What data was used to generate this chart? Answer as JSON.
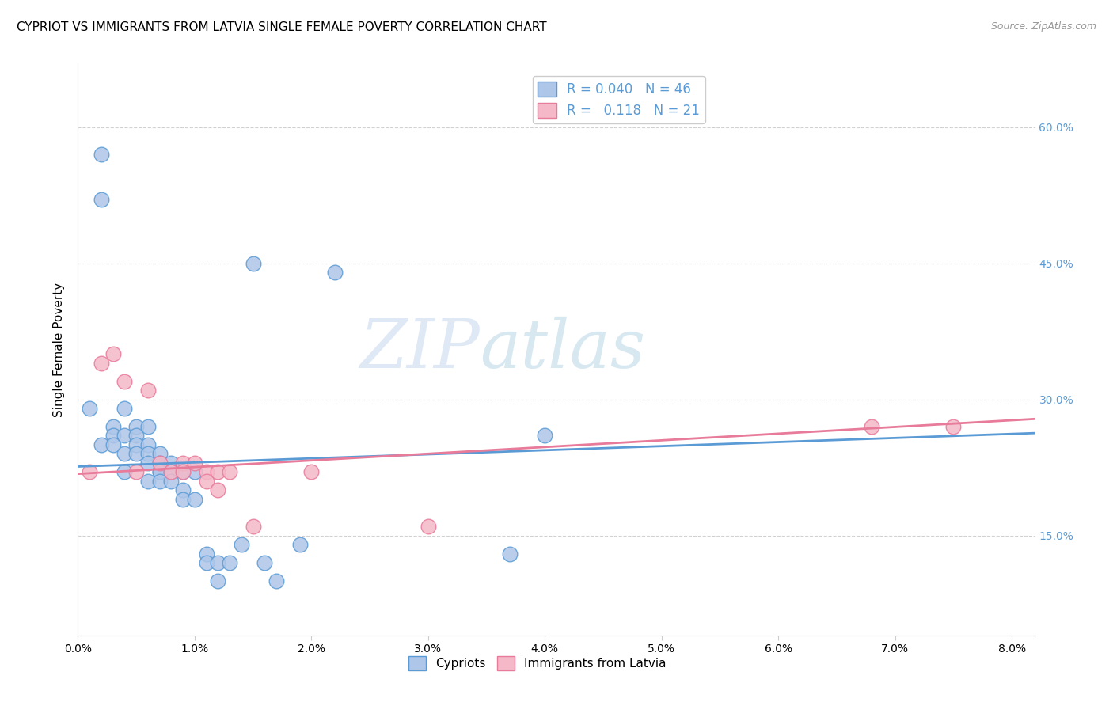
{
  "title": "CYPRIOT VS IMMIGRANTS FROM LATVIA SINGLE FEMALE POVERTY CORRELATION CHART",
  "source": "Source: ZipAtlas.com",
  "ylabel_label": "Single Female Poverty",
  "xlim": [
    0.0,
    0.082
  ],
  "ylim": [
    0.04,
    0.67
  ],
  "xticks": [
    0.0,
    0.01,
    0.02,
    0.03,
    0.04,
    0.05,
    0.06,
    0.07,
    0.08
  ],
  "xticklabels": [
    "0.0%",
    "1.0%",
    "2.0%",
    "3.0%",
    "4.0%",
    "5.0%",
    "6.0%",
    "7.0%",
    "8.0%"
  ],
  "yticks": [
    0.15,
    0.3,
    0.45,
    0.6
  ],
  "yticklabels": [
    "15.0%",
    "30.0%",
    "45.0%",
    "60.0%"
  ],
  "watermark1": "ZIP",
  "watermark2": "atlas",
  "blue_color": "#aec6e8",
  "blue_edge": "#5b9bd5",
  "pink_color": "#f4b8c8",
  "pink_edge": "#e87a9a",
  "blue_line": "#5b9bd5",
  "pink_line": "#e87a9a",
  "grid_color": "#cccccc",
  "cypriot_x": [
    0.001,
    0.002,
    0.002,
    0.002,
    0.003,
    0.003,
    0.003,
    0.004,
    0.004,
    0.004,
    0.004,
    0.005,
    0.005,
    0.005,
    0.005,
    0.006,
    0.006,
    0.006,
    0.006,
    0.006,
    0.007,
    0.007,
    0.007,
    0.007,
    0.007,
    0.008,
    0.008,
    0.008,
    0.009,
    0.009,
    0.009,
    0.01,
    0.01,
    0.011,
    0.011,
    0.012,
    0.012,
    0.013,
    0.014,
    0.015,
    0.016,
    0.017,
    0.019,
    0.022,
    0.037,
    0.04
  ],
  "cypriot_y": [
    0.29,
    0.57,
    0.52,
    0.25,
    0.27,
    0.26,
    0.25,
    0.29,
    0.26,
    0.24,
    0.22,
    0.27,
    0.26,
    0.25,
    0.24,
    0.27,
    0.25,
    0.24,
    0.23,
    0.21,
    0.24,
    0.23,
    0.22,
    0.22,
    0.21,
    0.23,
    0.22,
    0.21,
    0.22,
    0.2,
    0.19,
    0.22,
    0.19,
    0.13,
    0.12,
    0.12,
    0.1,
    0.12,
    0.14,
    0.45,
    0.12,
    0.1,
    0.14,
    0.44,
    0.13,
    0.26
  ],
  "latvia_x": [
    0.001,
    0.002,
    0.003,
    0.004,
    0.005,
    0.006,
    0.007,
    0.008,
    0.009,
    0.009,
    0.01,
    0.011,
    0.011,
    0.012,
    0.012,
    0.013,
    0.015,
    0.02,
    0.03,
    0.068,
    0.075
  ],
  "latvia_y": [
    0.22,
    0.34,
    0.35,
    0.32,
    0.22,
    0.31,
    0.23,
    0.22,
    0.23,
    0.22,
    0.23,
    0.22,
    0.21,
    0.22,
    0.2,
    0.22,
    0.16,
    0.22,
    0.16,
    0.27,
    0.27
  ],
  "cypriot_label": "Cypriots",
  "latvia_label": "Immigrants from Latvia",
  "legend_r1": "R = 0.040   N = 46",
  "legend_r2": "R =   0.118   N = 21",
  "r1_color": "#5b9bd5",
  "r2_color": "#5b9bd5"
}
